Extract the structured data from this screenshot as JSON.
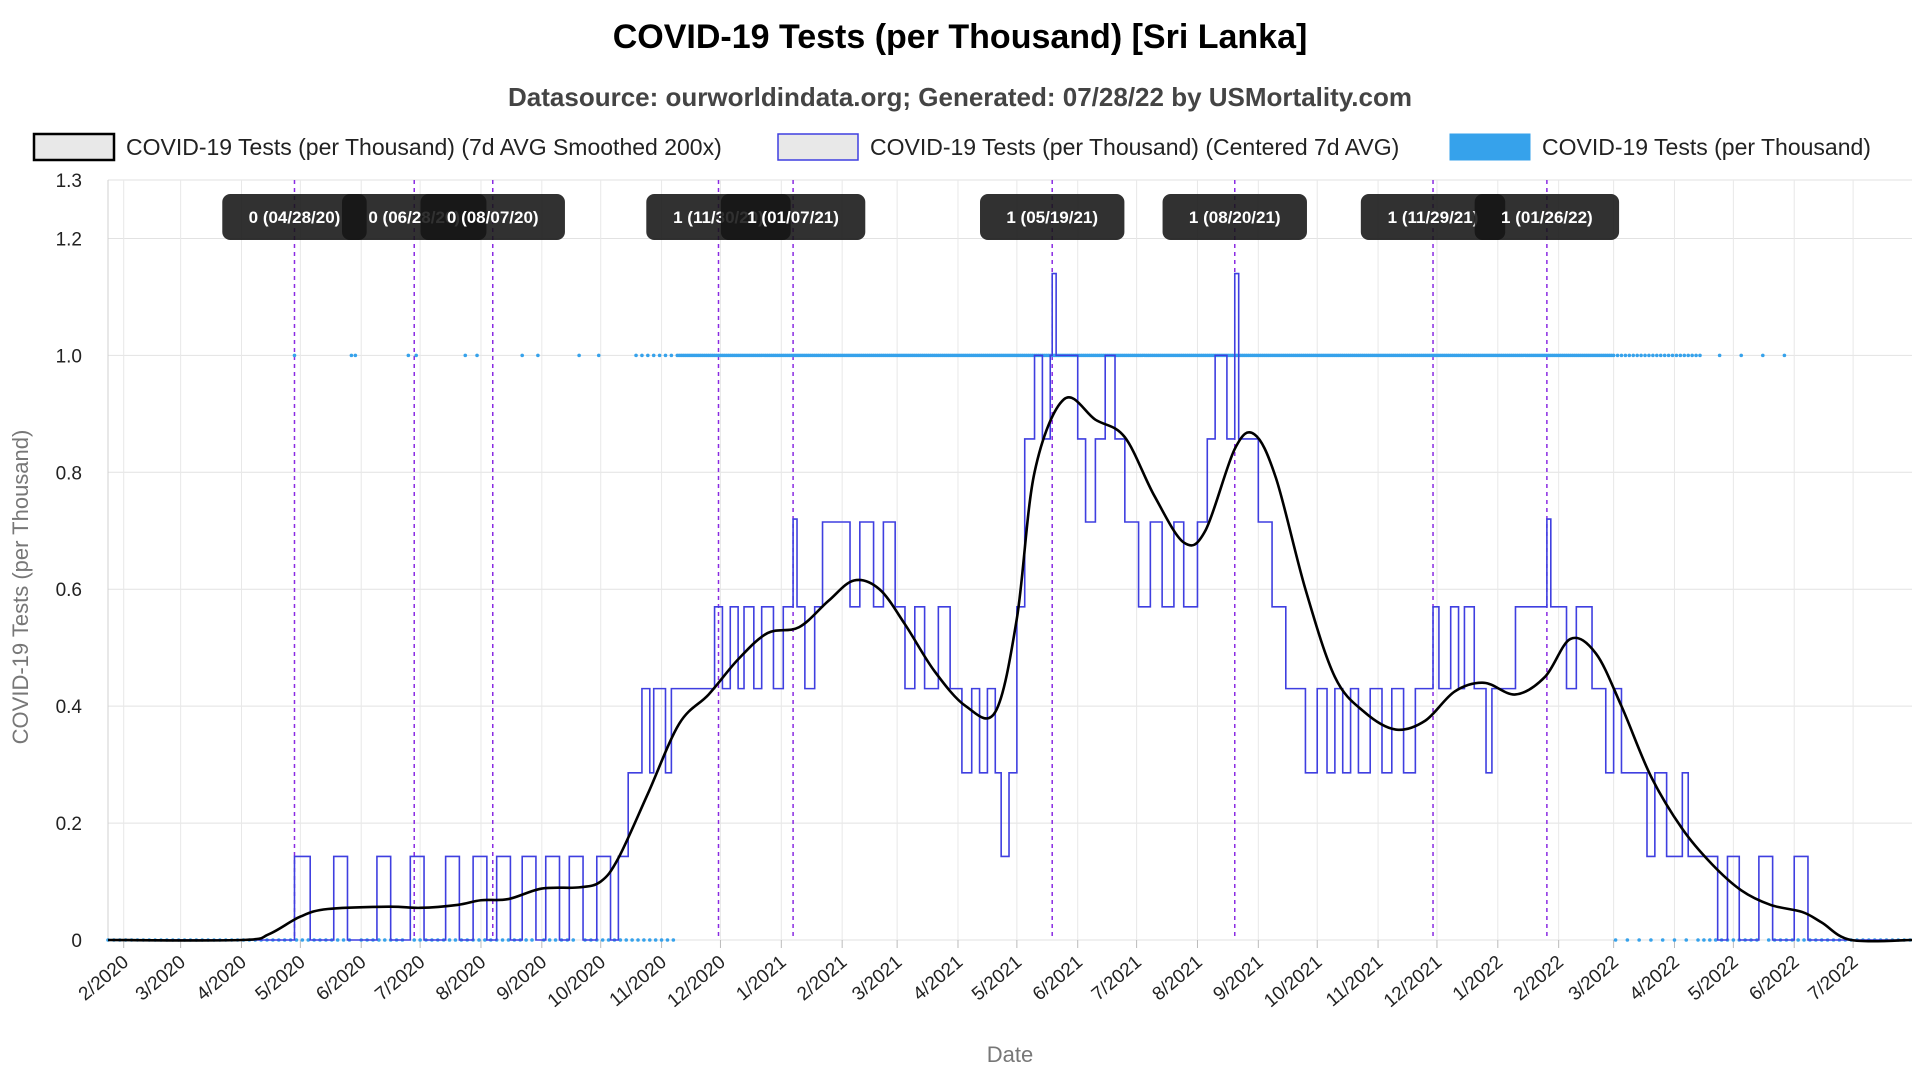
{
  "chart_data": {
    "type": "line",
    "title": "COVID-19 Tests (per Thousand) [Sri Lanka]",
    "subtitle": "Datasource: ourworldindata.org; Generated: 07/28/22 by USMortality.com",
    "xlabel": "Date",
    "ylabel": "COVID-19 Tests (per Thousand)",
    "ylim": [
      0,
      1.3
    ],
    "y_ticks": [
      "0",
      "0.2",
      "0.4",
      "0.6",
      "0.8",
      "1.0",
      "1.2",
      "1.3"
    ],
    "y_tick_values": [
      0,
      0.2,
      0.4,
      0.6,
      0.8,
      1.0,
      1.2,
      1.3
    ],
    "xlim": [
      "2020-01-24",
      "2022-07-31"
    ],
    "x_ticks": [
      "2/2020",
      "3/2020",
      "4/2020",
      "5/2020",
      "6/2020",
      "7/2020",
      "8/2020",
      "9/2020",
      "10/2020",
      "11/2020",
      "12/2020",
      "1/2021",
      "2/2021",
      "3/2021",
      "4/2021",
      "5/2021",
      "6/2021",
      "7/2021",
      "8/2021",
      "9/2021",
      "10/2021",
      "11/2021",
      "12/2021",
      "1/2022",
      "2/2022",
      "3/2022",
      "4/2022",
      "5/2022",
      "6/2022",
      "7/2022"
    ],
    "x_tick_dates": [
      "2020-02-01",
      "2020-03-01",
      "2020-04-01",
      "2020-05-01",
      "2020-06-01",
      "2020-07-01",
      "2020-08-01",
      "2020-09-01",
      "2020-10-01",
      "2020-11-01",
      "2020-12-01",
      "2021-01-01",
      "2021-02-01",
      "2021-03-01",
      "2021-04-01",
      "2021-05-01",
      "2021-06-01",
      "2021-07-01",
      "2021-08-01",
      "2021-09-01",
      "2021-10-01",
      "2021-11-01",
      "2021-12-01",
      "2022-01-01",
      "2022-02-01",
      "2022-03-01",
      "2022-04-01",
      "2022-05-01",
      "2022-06-01",
      "2022-07-01"
    ],
    "grid": true,
    "legend_position": "top",
    "series": [
      {
        "name": "COVID-19 Tests (per Thousand) (7d AVG Smoothed 200x)",
        "color": "#000000",
        "style": "smooth-line",
        "points": [
          [
            "2020-01-24",
            0
          ],
          [
            "2020-04-01",
            0
          ],
          [
            "2020-04-15",
            0.01
          ],
          [
            "2020-05-01",
            0.04
          ],
          [
            "2020-05-15",
            0.053
          ],
          [
            "2020-06-15",
            0.057
          ],
          [
            "2020-07-01",
            0.055
          ],
          [
            "2020-07-20",
            0.06
          ],
          [
            "2020-08-01",
            0.068
          ],
          [
            "2020-08-15",
            0.07
          ],
          [
            "2020-09-01",
            0.088
          ],
          [
            "2020-09-20",
            0.09
          ],
          [
            "2020-10-01",
            0.1
          ],
          [
            "2020-10-10",
            0.14
          ],
          [
            "2020-10-25",
            0.25
          ],
          [
            "2020-11-10",
            0.37
          ],
          [
            "2020-11-25",
            0.42
          ],
          [
            "2020-12-10",
            0.48
          ],
          [
            "2020-12-25",
            0.525
          ],
          [
            "2021-01-10",
            0.535
          ],
          [
            "2021-01-25",
            0.58
          ],
          [
            "2021-02-07",
            0.615
          ],
          [
            "2021-02-20",
            0.6
          ],
          [
            "2021-03-05",
            0.54
          ],
          [
            "2021-03-20",
            0.46
          ],
          [
            "2021-04-05",
            0.4
          ],
          [
            "2021-04-20",
            0.39
          ],
          [
            "2021-05-01",
            0.55
          ],
          [
            "2021-05-10",
            0.8
          ],
          [
            "2021-05-25",
            0.925
          ],
          [
            "2021-06-10",
            0.89
          ],
          [
            "2021-06-25",
            0.86
          ],
          [
            "2021-07-10",
            0.76
          ],
          [
            "2021-07-25",
            0.68
          ],
          [
            "2021-08-05",
            0.7
          ],
          [
            "2021-08-20",
            0.84
          ],
          [
            "2021-08-30",
            0.865
          ],
          [
            "2021-09-10",
            0.79
          ],
          [
            "2021-09-25",
            0.6
          ],
          [
            "2021-10-10",
            0.45
          ],
          [
            "2021-10-25",
            0.39
          ],
          [
            "2021-11-10",
            0.36
          ],
          [
            "2021-11-25",
            0.375
          ],
          [
            "2021-12-10",
            0.425
          ],
          [
            "2021-12-25",
            0.44
          ],
          [
            "2022-01-10",
            0.42
          ],
          [
            "2022-01-25",
            0.45
          ],
          [
            "2022-02-07",
            0.515
          ],
          [
            "2022-02-20",
            0.49
          ],
          [
            "2022-03-05",
            0.4
          ],
          [
            "2022-03-20",
            0.28
          ],
          [
            "2022-04-05",
            0.19
          ],
          [
            "2022-04-20",
            0.13
          ],
          [
            "2022-05-05",
            0.085
          ],
          [
            "2022-05-20",
            0.06
          ],
          [
            "2022-06-05",
            0.048
          ],
          [
            "2022-06-15",
            0.03
          ],
          [
            "2022-06-30",
            0
          ],
          [
            "2022-07-31",
            0
          ]
        ]
      },
      {
        "name": "COVID-19 Tests (per Thousand) (Centered 7d AVG)",
        "color": "#3f3fe0",
        "style": "step-line",
        "segments": [
          [
            "2020-01-24",
            0
          ],
          [
            "2020-04-28",
            0.143
          ],
          [
            "2020-05-06",
            0
          ],
          [
            "2020-05-18",
            0.143
          ],
          [
            "2020-05-25",
            0
          ],
          [
            "2020-06-09",
            0.143
          ],
          [
            "2020-06-16",
            0
          ],
          [
            "2020-06-26",
            0.143
          ],
          [
            "2020-07-03",
            0
          ],
          [
            "2020-07-14",
            0.143
          ],
          [
            "2020-07-21",
            0
          ],
          [
            "2020-07-28",
            0.143
          ],
          [
            "2020-08-04",
            0
          ],
          [
            "2020-08-09",
            0.143
          ],
          [
            "2020-08-16",
            0
          ],
          [
            "2020-08-22",
            0.143
          ],
          [
            "2020-08-29",
            0
          ],
          [
            "2020-09-03",
            0.143
          ],
          [
            "2020-09-10",
            0
          ],
          [
            "2020-09-15",
            0.143
          ],
          [
            "2020-09-22",
            0
          ],
          [
            "2020-09-29",
            0.143
          ],
          [
            "2020-10-06",
            0
          ],
          [
            "2020-10-10",
            0.143
          ],
          [
            "2020-10-15",
            0.286
          ],
          [
            "2020-10-22",
            0.43
          ],
          [
            "2020-10-26",
            0.286
          ],
          [
            "2020-10-28",
            0.43
          ],
          [
            "2020-11-03",
            0.286
          ],
          [
            "2020-11-06",
            0.43
          ],
          [
            "2020-11-28",
            0.57
          ],
          [
            "2020-12-02",
            0.43
          ],
          [
            "2020-12-06",
            0.57
          ],
          [
            "2020-12-10",
            0.43
          ],
          [
            "2020-12-13",
            0.57
          ],
          [
            "2020-12-18",
            0.43
          ],
          [
            "2020-12-22",
            0.57
          ],
          [
            "2020-12-28",
            0.43
          ],
          [
            "2021-01-02",
            0.57
          ],
          [
            "2021-01-07",
            0.72
          ],
          [
            "2021-01-09",
            0.57
          ],
          [
            "2021-01-13",
            0.43
          ],
          [
            "2021-01-18",
            0.57
          ],
          [
            "2021-01-22",
            0.715
          ],
          [
            "2021-02-05",
            0.57
          ],
          [
            "2021-02-10",
            0.715
          ],
          [
            "2021-02-17",
            0.57
          ],
          [
            "2021-02-22",
            0.715
          ],
          [
            "2021-02-28",
            0.57
          ],
          [
            "2021-03-05",
            0.43
          ],
          [
            "2021-03-10",
            0.57
          ],
          [
            "2021-03-15",
            0.43
          ],
          [
            "2021-03-22",
            0.57
          ],
          [
            "2021-03-28",
            0.43
          ],
          [
            "2021-04-03",
            0.286
          ],
          [
            "2021-04-08",
            0.43
          ],
          [
            "2021-04-12",
            0.286
          ],
          [
            "2021-04-16",
            0.43
          ],
          [
            "2021-04-20",
            0.286
          ],
          [
            "2021-04-23",
            0.143
          ],
          [
            "2021-04-27",
            0.286
          ],
          [
            "2021-05-01",
            0.57
          ],
          [
            "2021-05-05",
            0.857
          ],
          [
            "2021-05-10",
            1.0
          ],
          [
            "2021-05-14",
            0.857
          ],
          [
            "2021-05-18",
            1.0
          ],
          [
            "2021-05-19",
            1.14
          ],
          [
            "2021-05-21",
            1.0
          ],
          [
            "2021-06-01",
            0.857
          ],
          [
            "2021-06-05",
            0.715
          ],
          [
            "2021-06-10",
            0.857
          ],
          [
            "2021-06-15",
            1.0
          ],
          [
            "2021-06-20",
            0.857
          ],
          [
            "2021-06-25",
            0.715
          ],
          [
            "2021-07-02",
            0.57
          ],
          [
            "2021-07-08",
            0.715
          ],
          [
            "2021-07-14",
            0.57
          ],
          [
            "2021-07-20",
            0.715
          ],
          [
            "2021-07-25",
            0.57
          ],
          [
            "2021-08-01",
            0.715
          ],
          [
            "2021-08-06",
            0.857
          ],
          [
            "2021-08-10",
            1.0
          ],
          [
            "2021-08-16",
            0.857
          ],
          [
            "2021-08-20",
            1.14
          ],
          [
            "2021-08-22",
            0.857
          ],
          [
            "2021-09-01",
            0.715
          ],
          [
            "2021-09-08",
            0.57
          ],
          [
            "2021-09-15",
            0.43
          ],
          [
            "2021-09-25",
            0.286
          ],
          [
            "2021-10-01",
            0.43
          ],
          [
            "2021-10-06",
            0.286
          ],
          [
            "2021-10-10",
            0.43
          ],
          [
            "2021-10-14",
            0.286
          ],
          [
            "2021-10-18",
            0.43
          ],
          [
            "2021-10-22",
            0.286
          ],
          [
            "2021-10-28",
            0.43
          ],
          [
            "2021-11-03",
            0.286
          ],
          [
            "2021-11-08",
            0.43
          ],
          [
            "2021-11-14",
            0.286
          ],
          [
            "2021-11-20",
            0.43
          ],
          [
            "2021-11-29",
            0.57
          ],
          [
            "2021-12-02",
            0.43
          ],
          [
            "2021-12-08",
            0.57
          ],
          [
            "2021-12-12",
            0.43
          ],
          [
            "2021-12-15",
            0.57
          ],
          [
            "2021-12-20",
            0.43
          ],
          [
            "2021-12-26",
            0.286
          ],
          [
            "2021-12-29",
            0.43
          ],
          [
            "2022-01-10",
            0.57
          ],
          [
            "2022-01-20",
            0.57
          ],
          [
            "2022-01-26",
            0.72
          ],
          [
            "2022-01-28",
            0.57
          ],
          [
            "2022-02-05",
            0.43
          ],
          [
            "2022-02-10",
            0.57
          ],
          [
            "2022-02-18",
            0.43
          ],
          [
            "2022-02-25",
            0.286
          ],
          [
            "2022-03-01",
            0.43
          ],
          [
            "2022-03-05",
            0.286
          ],
          [
            "2022-03-18",
            0.143
          ],
          [
            "2022-03-22",
            0.286
          ],
          [
            "2022-03-28",
            0.143
          ],
          [
            "2022-04-05",
            0.286
          ],
          [
            "2022-04-08",
            0.143
          ],
          [
            "2022-04-23",
            0
          ],
          [
            "2022-04-28",
            0.143
          ],
          [
            "2022-05-04",
            0
          ],
          [
            "2022-05-14",
            0.143
          ],
          [
            "2022-05-21",
            0
          ],
          [
            "2022-06-01",
            0.143
          ],
          [
            "2022-06-08",
            0
          ],
          [
            "2022-07-31",
            0
          ]
        ]
      },
      {
        "name": "COVID-19 Tests (per Thousand)",
        "color": "#36a2eb",
        "style": "scatter",
        "points_note": "daily values, either 0 or 1"
      }
    ],
    "annotations": [
      {
        "label": "0 (04/28/20)",
        "date": "2020-04-28"
      },
      {
        "label": "0 (06/28/20)",
        "date": "2020-06-28"
      },
      {
        "label": "0 (08/07/20)",
        "date": "2020-08-07"
      },
      {
        "label": "1 (11/30/20)",
        "date": "2020-11-30"
      },
      {
        "label": "1 (01/07/21)",
        "date": "2021-01-07"
      },
      {
        "label": "1 (05/19/21)",
        "date": "2021-05-19"
      },
      {
        "label": "1 (08/20/21)",
        "date": "2021-08-20"
      },
      {
        "label": "1 (11/29/21)",
        "date": "2021-11-29"
      },
      {
        "label": "1 (01/26/22)",
        "date": "2022-01-26"
      }
    ],
    "annotation_line_color": "#8a2be2"
  }
}
